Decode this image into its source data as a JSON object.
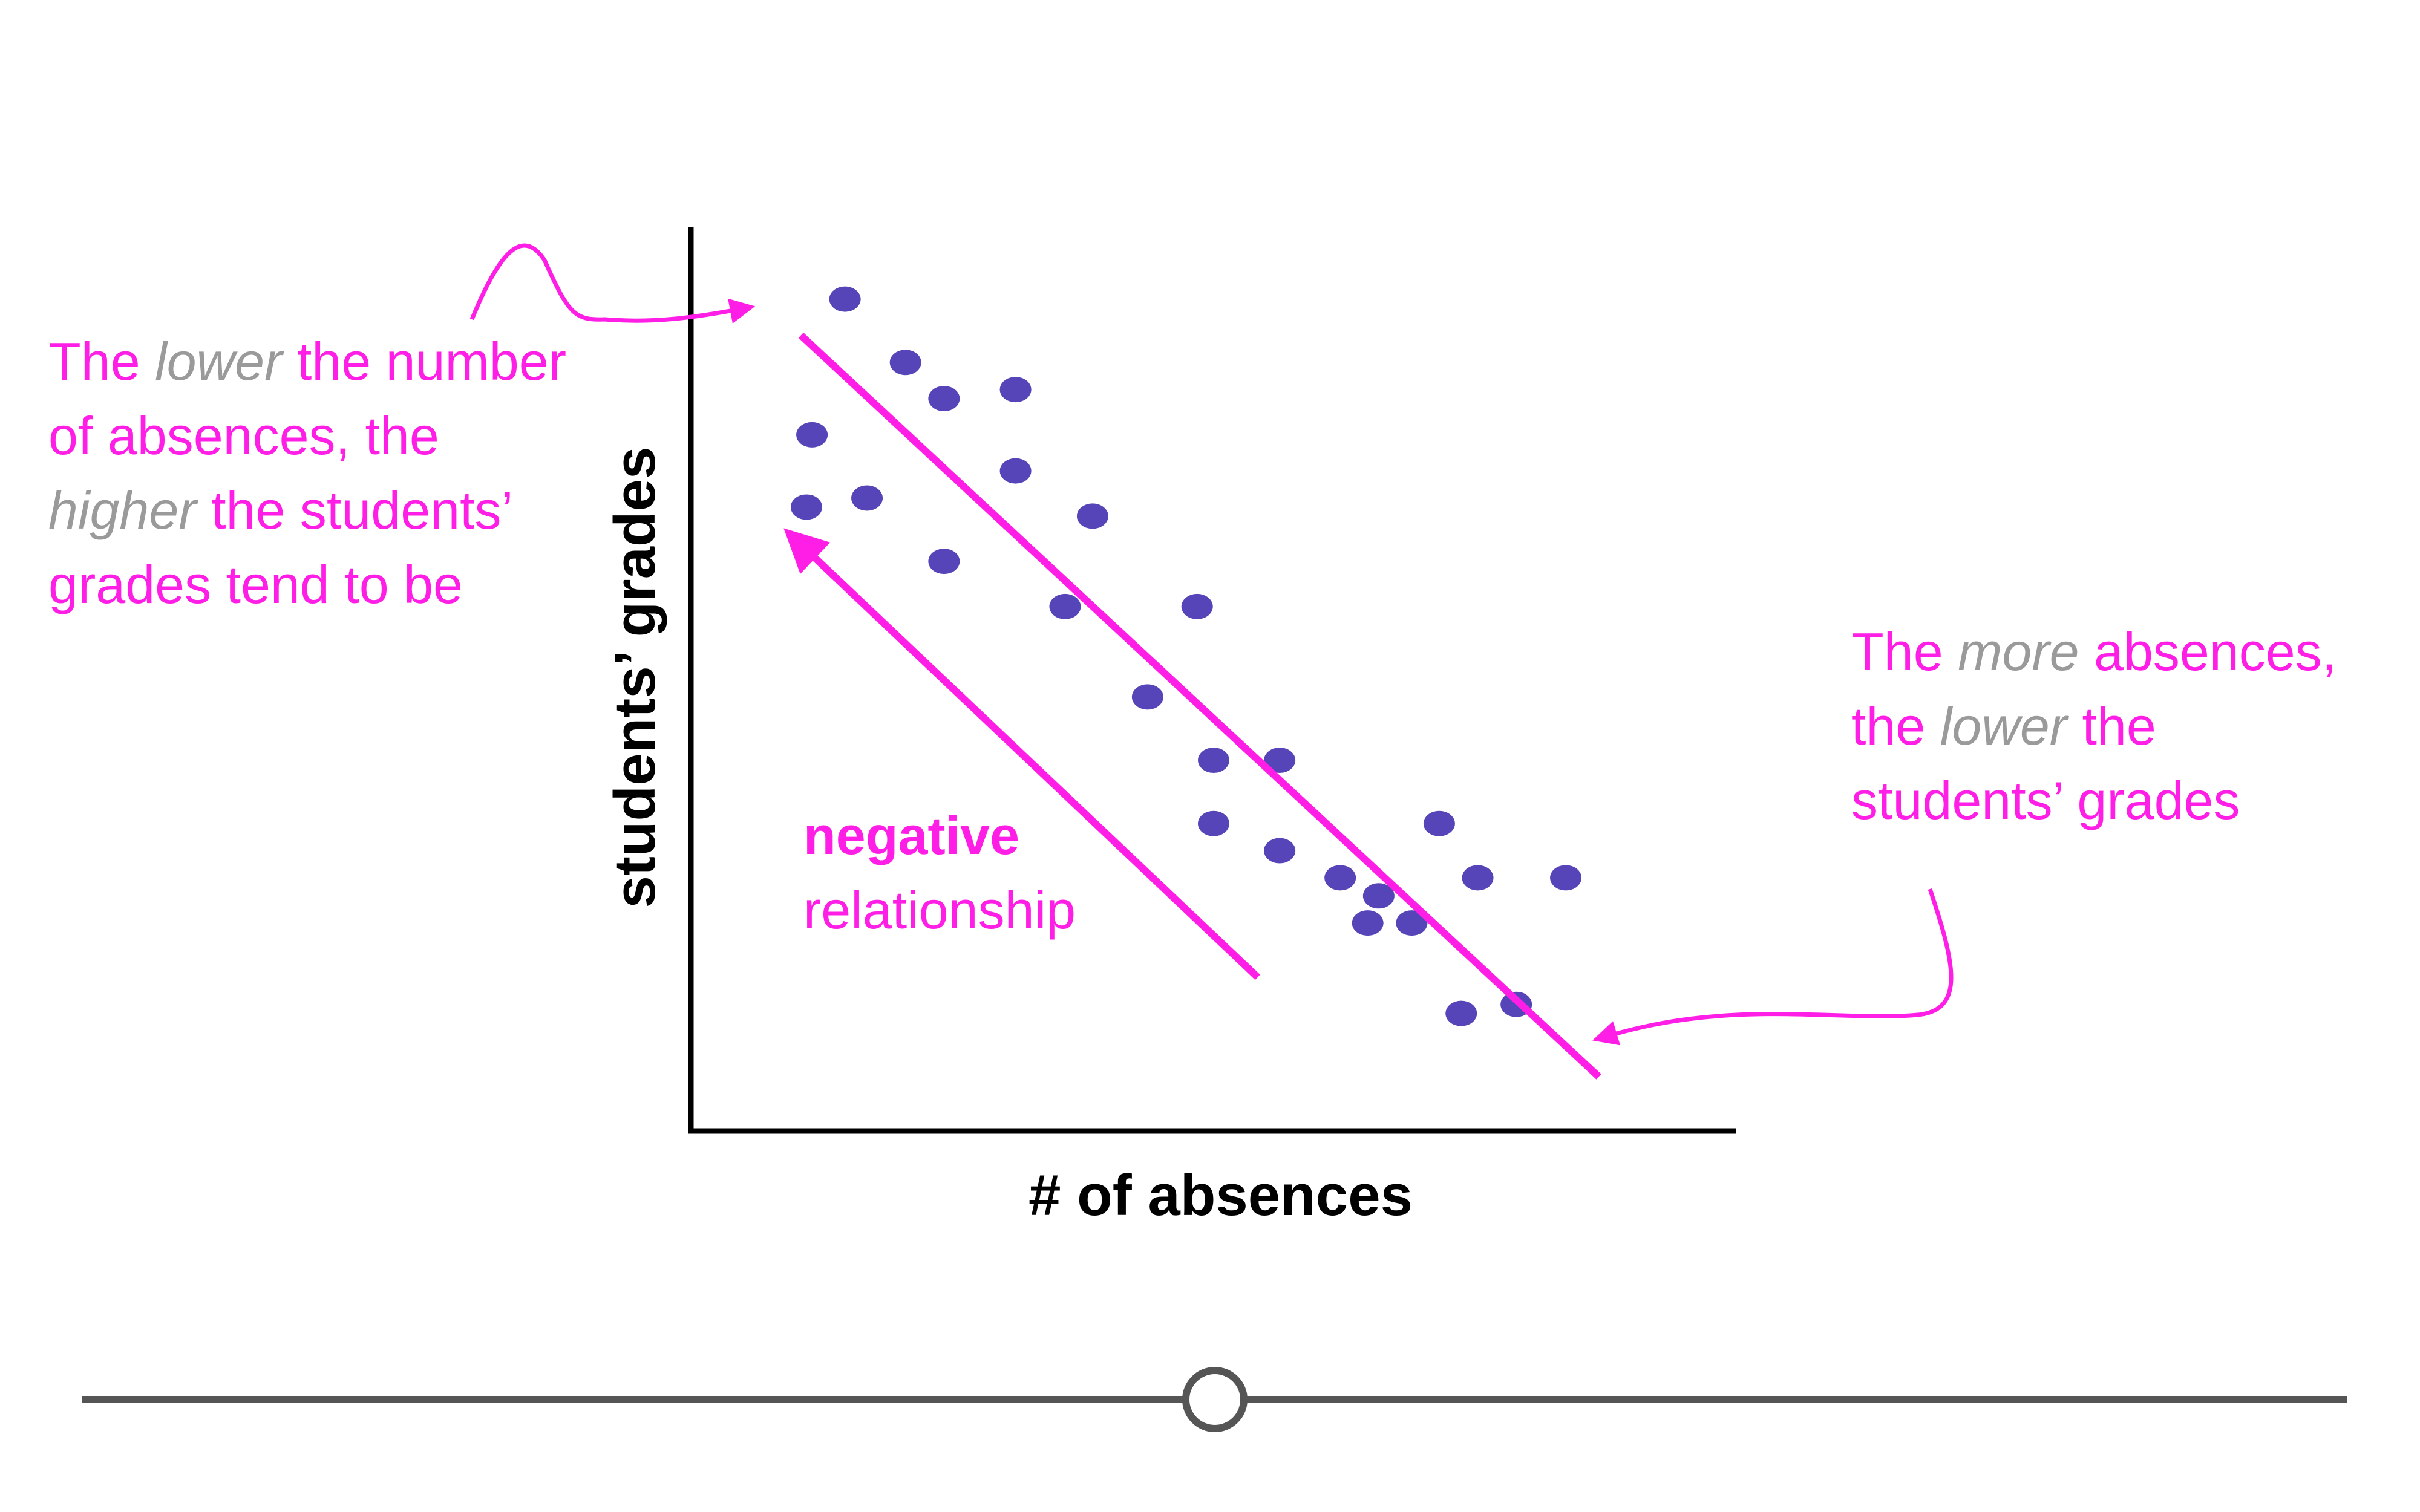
{
  "chart_data": {
    "type": "scatter",
    "xlabel": "# of absences",
    "ylabel": "students’ grades",
    "grid": false,
    "legend": "none",
    "points": [
      {
        "x": 2.8,
        "y": 9.2
      },
      {
        "x": 3.9,
        "y": 8.5
      },
      {
        "x": 4.6,
        "y": 8.1
      },
      {
        "x": 5.9,
        "y": 8.2
      },
      {
        "x": 2.2,
        "y": 7.7
      },
      {
        "x": 2.1,
        "y": 6.9
      },
      {
        "x": 3.2,
        "y": 7.0
      },
      {
        "x": 5.9,
        "y": 7.3
      },
      {
        "x": 7.3,
        "y": 6.8
      },
      {
        "x": 4.6,
        "y": 6.3
      },
      {
        "x": 6.8,
        "y": 5.8
      },
      {
        "x": 9.2,
        "y": 5.8
      },
      {
        "x": 8.3,
        "y": 4.8
      },
      {
        "x": 9.5,
        "y": 4.1
      },
      {
        "x": 10.7,
        "y": 4.1
      },
      {
        "x": 9.5,
        "y": 3.4
      },
      {
        "x": 10.7,
        "y": 3.1
      },
      {
        "x": 13.6,
        "y": 3.4
      },
      {
        "x": 11.8,
        "y": 2.8
      },
      {
        "x": 12.5,
        "y": 2.6
      },
      {
        "x": 14.3,
        "y": 2.8
      },
      {
        "x": 15.9,
        "y": 2.8
      },
      {
        "x": 12.3,
        "y": 2.3
      },
      {
        "x": 13.1,
        "y": 2.3
      },
      {
        "x": 14.0,
        "y": 1.3
      },
      {
        "x": 15.0,
        "y": 1.4
      }
    ],
    "xlim": [
      0,
      19
    ],
    "ylim": [
      0,
      10
    ],
    "trend_line": [
      {
        "x": 2,
        "y": 8.8
      },
      {
        "x": 16.5,
        "y": 0.6
      }
    ],
    "direction_arrow": [
      {
        "x": 10.3,
        "y": 1.7
      },
      {
        "x": 1.8,
        "y": 6.6
      }
    ],
    "colors": {
      "points": "#5645b8",
      "annotations": "#ff1ee6",
      "emphasis": "#9a9a9a",
      "axes": "#000000",
      "slider": "#555555"
    }
  },
  "annotations": {
    "left": {
      "line1_a": "The ",
      "line1_em": "lower",
      "line1_b": " the number",
      "line2": "of absences, the",
      "line3_em": "higher",
      "line3_b": " the students’",
      "line4": "grades tend to be"
    },
    "right": {
      "line1_a": "The ",
      "line1_em": "more",
      "line1_b": " absences,",
      "line2_a": "the ",
      "line2_em": "lower",
      "line2_b": " the",
      "line3": "students’ grades"
    },
    "relationship": {
      "bold": "negative",
      "rest": "relationship"
    }
  },
  "slider": {
    "value": 0.5
  }
}
